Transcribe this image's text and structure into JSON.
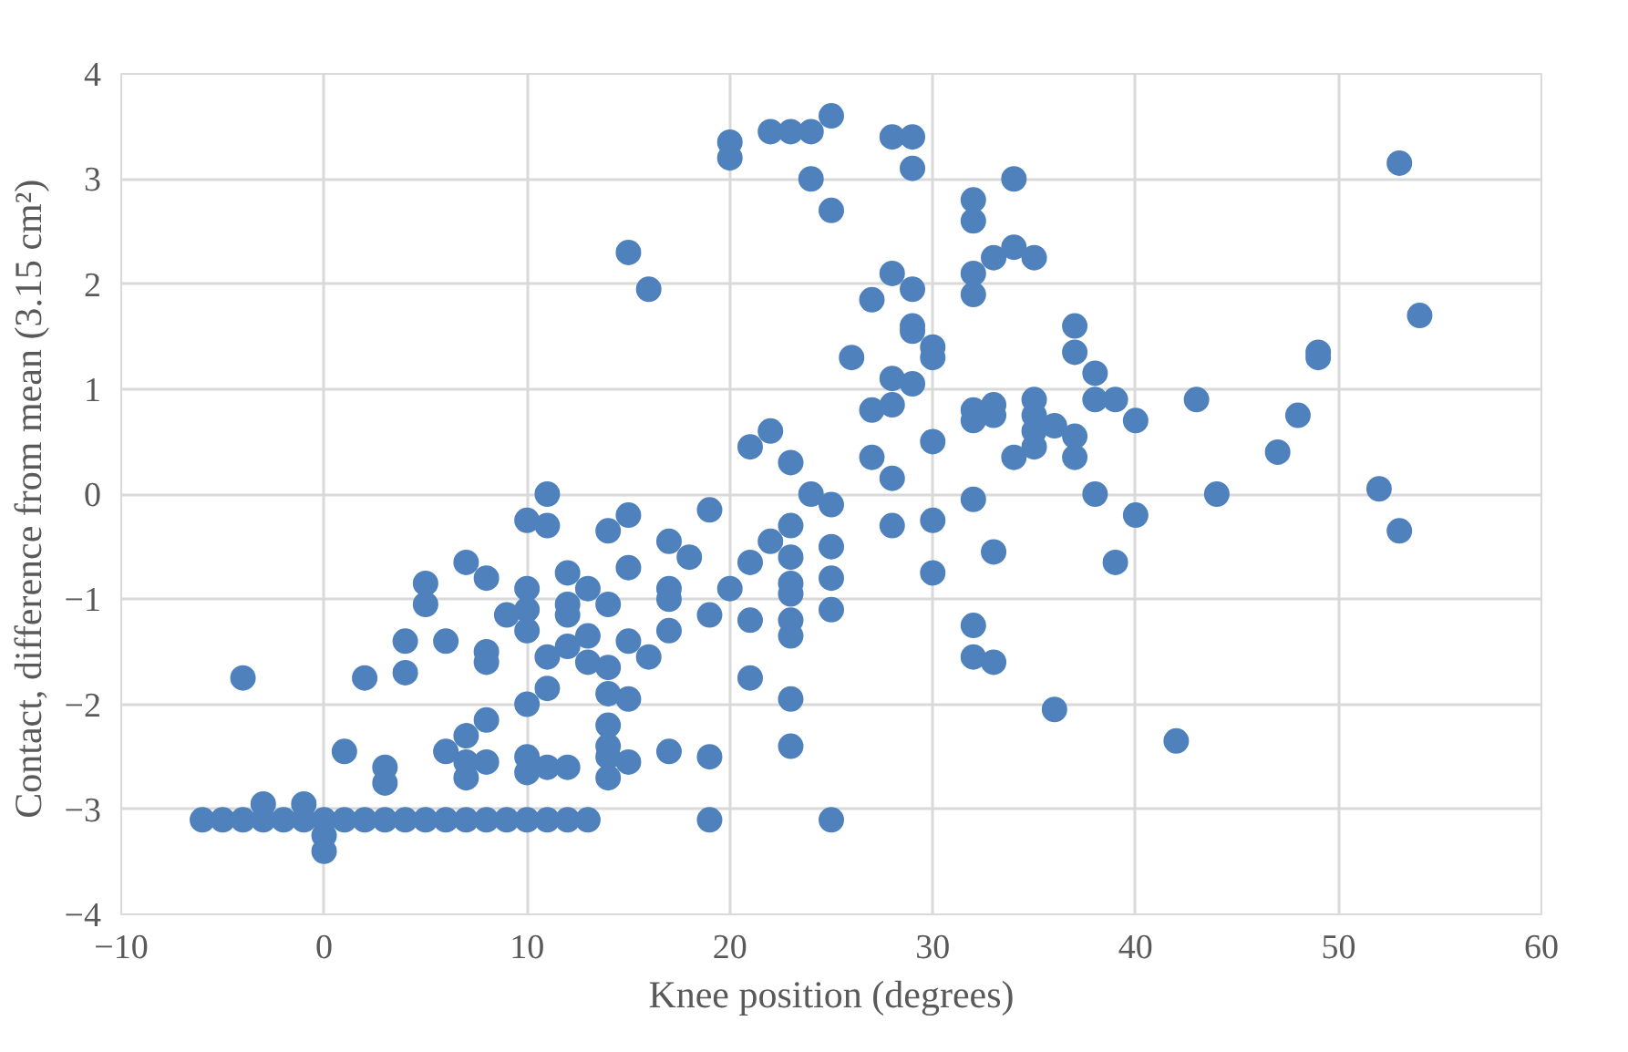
{
  "chart_data": {
    "type": "scatter",
    "xlabel": "Knee position (degrees)",
    "ylabel": "Contact,  difference from mean (3.15 cm²)",
    "xlim": [
      -10,
      60
    ],
    "ylim": [
      -4,
      4
    ],
    "xticks": [
      -10,
      0,
      10,
      20,
      30,
      40,
      50,
      60
    ],
    "yticks": [
      -4,
      -3,
      -2,
      -1,
      0,
      1,
      2,
      3,
      4
    ],
    "grid": true,
    "marker": "circle",
    "series": [
      {
        "color": "#4f81bd",
        "x": [
          20,
          20,
          22,
          23,
          24,
          25,
          24,
          25,
          28,
          29,
          29,
          15,
          16,
          34,
          32,
          32,
          33,
          34,
          35,
          32,
          32,
          28,
          29,
          27,
          29,
          29,
          30,
          30,
          26,
          28,
          29,
          27,
          28,
          30,
          27,
          28,
          24,
          25,
          21,
          22,
          23,
          19,
          32,
          32,
          33,
          33,
          35,
          35,
          35,
          36,
          37,
          37,
          35,
          34,
          37,
          37,
          38,
          38,
          39,
          40,
          43,
          48,
          47,
          49,
          49,
          53,
          54,
          52,
          44,
          38,
          32,
          40,
          28,
          30,
          53,
          33,
          39,
          30,
          32,
          32,
          33,
          36,
          42,
          17,
          18,
          22,
          23,
          23,
          21,
          25,
          25,
          23,
          23,
          20,
          17,
          17,
          15,
          15,
          19,
          21,
          23,
          23,
          25,
          17,
          15,
          16,
          21,
          23,
          15,
          15,
          17,
          19,
          23,
          19,
          25,
          11,
          10,
          11,
          14,
          7,
          8,
          5,
          5,
          10,
          10,
          12,
          13,
          14,
          12,
          12,
          9,
          10,
          13,
          12,
          4,
          6,
          8,
          8,
          11,
          13,
          14,
          4,
          2,
          -4,
          11,
          14,
          10,
          8,
          7,
          14,
          14,
          14,
          14,
          6,
          7,
          7,
          8,
          10,
          10,
          11,
          12,
          1,
          3,
          3,
          -1,
          -3,
          0,
          0,
          -6,
          -5,
          -4,
          -3,
          -2,
          -1,
          0,
          1,
          2,
          3,
          4,
          5,
          6,
          7,
          8,
          9,
          10,
          11,
          12,
          13
        ],
        "values": [
          3.35,
          3.2,
          3.45,
          3.45,
          3.45,
          3.6,
          3.0,
          2.7,
          3.4,
          3.4,
          3.1,
          2.3,
          1.95,
          3.0,
          2.8,
          2.6,
          2.25,
          2.35,
          2.25,
          2.1,
          1.9,
          2.1,
          1.95,
          1.85,
          1.6,
          1.55,
          1.4,
          1.3,
          1.3,
          1.1,
          1.05,
          0.8,
          0.85,
          0.5,
          0.35,
          0.15,
          0.0,
          -0.1,
          0.45,
          0.6,
          0.3,
          -0.15,
          0.8,
          0.7,
          0.85,
          0.75,
          0.9,
          0.75,
          0.6,
          0.65,
          0.55,
          0.35,
          0.45,
          0.35,
          1.6,
          1.35,
          1.15,
          0.9,
          0.9,
          0.7,
          0.9,
          0.75,
          0.4,
          1.35,
          1.3,
          3.15,
          1.7,
          0.05,
          0.0,
          0.0,
          -0.05,
          -0.2,
          -0.3,
          -0.25,
          -0.35,
          -0.55,
          -0.65,
          -0.75,
          -1.25,
          -1.55,
          -1.6,
          -2.05,
          -2.35,
          -0.45,
          -0.6,
          -0.45,
          -0.3,
          -0.6,
          -0.65,
          -0.5,
          -0.8,
          -0.85,
          -0.95,
          -0.9,
          -0.9,
          -1.0,
          -0.7,
          -0.2,
          -1.15,
          -1.2,
          -1.2,
          -1.35,
          -1.1,
          -1.3,
          -1.4,
          -1.55,
          -1.75,
          -1.95,
          -1.95,
          -2.55,
          -2.45,
          -2.5,
          -2.4,
          -3.1,
          -3.1,
          0.0,
          -0.25,
          -0.3,
          -0.35,
          -0.65,
          -0.8,
          -0.85,
          -1.05,
          -0.9,
          -1.1,
          -0.75,
          -0.9,
          -1.05,
          -1.05,
          -1.15,
          -1.15,
          -1.3,
          -1.35,
          -1.45,
          -1.4,
          -1.4,
          -1.5,
          -1.6,
          -1.55,
          -1.6,
          -1.65,
          -1.7,
          -1.75,
          -1.75,
          -1.85,
          -1.9,
          -2.0,
          -2.15,
          -2.3,
          -2.2,
          -2.4,
          -2.5,
          -2.7,
          -2.45,
          -2.55,
          -2.7,
          -2.55,
          -2.5,
          -2.65,
          -2.6,
          -2.6,
          -2.45,
          -2.6,
          -2.75,
          -2.95,
          -2.95,
          -3.25,
          -3.4,
          -3.1,
          -3.1,
          -3.1,
          -3.1,
          -3.1,
          -3.1,
          -3.1,
          -3.1,
          -3.1,
          -3.1,
          -3.1,
          -3.1,
          -3.1,
          -3.1,
          -3.1,
          -3.1,
          -3.1,
          -3.1,
          -3.1,
          -3.1
        ]
      }
    ]
  }
}
